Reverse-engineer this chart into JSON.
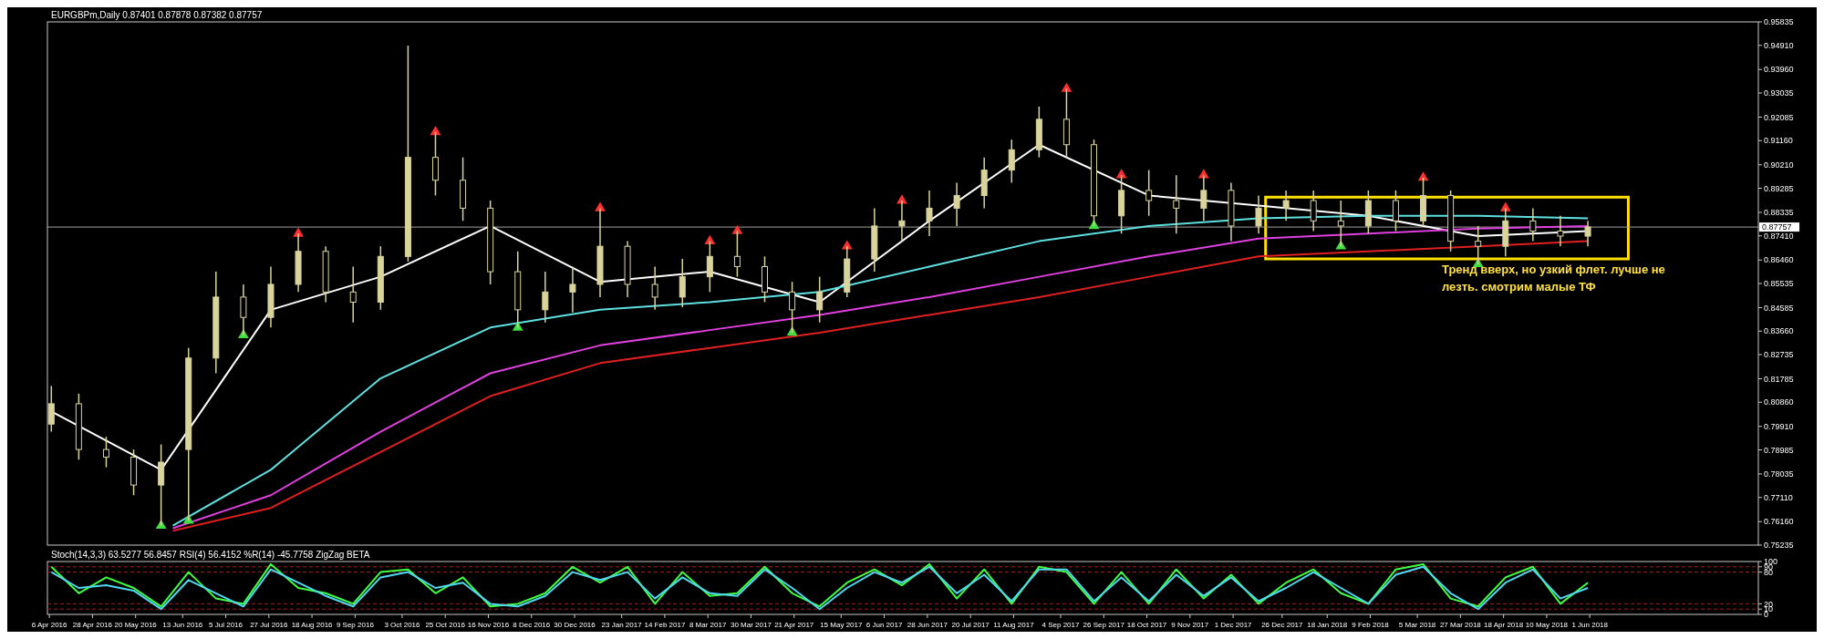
{
  "chart_data": [
    {
      "type": "candlestick",
      "title": "EURGBPm,Daily 0.87401 0.87878 0.87382 0.87757",
      "color": "#d9d49c",
      "x": [
        "2016-04-07",
        "2016-04-21",
        "2016-05-05",
        "2016-05-19",
        "2016-06-02",
        "2016-06-16",
        "2016-06-30",
        "2016-07-14",
        "2016-07-28",
        "2016-08-11",
        "2016-08-25",
        "2016-09-08",
        "2016-09-22",
        "2016-10-06",
        "2016-10-20",
        "2016-11-03",
        "2016-11-17",
        "2016-12-01",
        "2016-12-15",
        "2016-12-29",
        "2017-01-12",
        "2017-01-26",
        "2017-02-09",
        "2017-02-23",
        "2017-03-09",
        "2017-03-23",
        "2017-04-06",
        "2017-04-20",
        "2017-05-04",
        "2017-05-18",
        "2017-06-01",
        "2017-06-15",
        "2017-06-29",
        "2017-07-13",
        "2017-07-27",
        "2017-08-10",
        "2017-08-24",
        "2017-09-07",
        "2017-09-21",
        "2017-10-05",
        "2017-10-19",
        "2017-11-02",
        "2017-11-16",
        "2017-11-30",
        "2017-12-14",
        "2017-12-28",
        "2018-01-11",
        "2018-01-25",
        "2018-02-08",
        "2018-02-22",
        "2018-03-08",
        "2018-03-22",
        "2018-04-05",
        "2018-04-19",
        "2018-05-03",
        "2018-05-17",
        "2018-05-31"
      ],
      "ohlc": [
        [
          0.8,
          0.815,
          0.797,
          0.808
        ],
        [
          0.808,
          0.812,
          0.786,
          0.79
        ],
        [
          0.79,
          0.795,
          0.783,
          0.787
        ],
        [
          0.787,
          0.79,
          0.772,
          0.776
        ],
        [
          0.776,
          0.792,
          0.76,
          0.785
        ],
        [
          0.79,
          0.83,
          0.762,
          0.826
        ],
        [
          0.826,
          0.86,
          0.82,
          0.85
        ],
        [
          0.85,
          0.855,
          0.835,
          0.842
        ],
        [
          0.842,
          0.862,
          0.838,
          0.855
        ],
        [
          0.855,
          0.875,
          0.852,
          0.868
        ],
        [
          0.868,
          0.87,
          0.848,
          0.852
        ],
        [
          0.852,
          0.862,
          0.84,
          0.848
        ],
        [
          0.848,
          0.87,
          0.845,
          0.866
        ],
        [
          0.866,
          0.949,
          0.864,
          0.905
        ],
        [
          0.905,
          0.915,
          0.89,
          0.896
        ],
        [
          0.896,
          0.905,
          0.88,
          0.885
        ],
        [
          0.885,
          0.888,
          0.855,
          0.86
        ],
        [
          0.86,
          0.868,
          0.838,
          0.845
        ],
        [
          0.845,
          0.86,
          0.84,
          0.852
        ],
        [
          0.852,
          0.862,
          0.844,
          0.855
        ],
        [
          0.855,
          0.885,
          0.85,
          0.87
        ],
        [
          0.87,
          0.872,
          0.85,
          0.855
        ],
        [
          0.855,
          0.862,
          0.845,
          0.85
        ],
        [
          0.85,
          0.865,
          0.846,
          0.858
        ],
        [
          0.858,
          0.872,
          0.852,
          0.866
        ],
        [
          0.866,
          0.876,
          0.858,
          0.862
        ],
        [
          0.862,
          0.866,
          0.848,
          0.852
        ],
        [
          0.852,
          0.856,
          0.836,
          0.845
        ],
        [
          0.845,
          0.858,
          0.84,
          0.852
        ],
        [
          0.852,
          0.87,
          0.85,
          0.865
        ],
        [
          0.865,
          0.885,
          0.86,
          0.878
        ],
        [
          0.878,
          0.888,
          0.872,
          0.88
        ],
        [
          0.88,
          0.892,
          0.874,
          0.885
        ],
        [
          0.885,
          0.895,
          0.878,
          0.89
        ],
        [
          0.89,
          0.905,
          0.885,
          0.9
        ],
        [
          0.9,
          0.912,
          0.895,
          0.908
        ],
        [
          0.908,
          0.925,
          0.905,
          0.92
        ],
        [
          0.92,
          0.932,
          0.905,
          0.91
        ],
        [
          0.91,
          0.912,
          0.878,
          0.882
        ],
        [
          0.882,
          0.898,
          0.875,
          0.892
        ],
        [
          0.892,
          0.9,
          0.882,
          0.888
        ],
        [
          0.888,
          0.898,
          0.875,
          0.885
        ],
        [
          0.885,
          0.898,
          0.88,
          0.892
        ],
        [
          0.892,
          0.895,
          0.872,
          0.878
        ],
        [
          0.878,
          0.89,
          0.875,
          0.885
        ],
        [
          0.885,
          0.892,
          0.88,
          0.888
        ],
        [
          0.888,
          0.892,
          0.876,
          0.88
        ],
        [
          0.88,
          0.888,
          0.87,
          0.878
        ],
        [
          0.878,
          0.892,
          0.875,
          0.888
        ],
        [
          0.888,
          0.892,
          0.876,
          0.88
        ],
        [
          0.88,
          0.897,
          0.878,
          0.89
        ],
        [
          0.89,
          0.892,
          0.868,
          0.872
        ],
        [
          0.872,
          0.878,
          0.863,
          0.87
        ],
        [
          0.87,
          0.885,
          0.866,
          0.88
        ],
        [
          0.88,
          0.885,
          0.872,
          0.876
        ],
        [
          0.876,
          0.882,
          0.87,
          0.874
        ],
        [
          0.874,
          0.88,
          0.87,
          0.8776
        ]
      ],
      "series": [
        {
          "type": "line",
          "color": "#ffffff",
          "x": [
            "2016-04-07",
            "2016-06-02",
            "2016-07-28",
            "2016-09-22",
            "2016-11-17",
            "2017-01-12",
            "2017-03-09",
            "2017-05-04",
            "2017-06-29",
            "2017-08-24",
            "2017-10-19",
            "2017-12-14",
            "2018-02-08",
            "2018-04-05",
            "2018-05-31"
          ],
          "values": [
            0.805,
            0.782,
            0.845,
            0.858,
            0.878,
            0.856,
            0.86,
            0.848,
            0.88,
            0.91,
            0.89,
            0.886,
            0.882,
            0.874,
            0.876
          ]
        },
        {
          "type": "line",
          "color": "#5fe0e0",
          "x": [
            "2016-06-08",
            "2016-07-28",
            "2016-09-22",
            "2016-11-17",
            "2017-01-12",
            "2017-03-09",
            "2017-05-04",
            "2017-06-29",
            "2017-08-24",
            "2017-10-19",
            "2017-12-14",
            "2018-02-08",
            "2018-04-05",
            "2018-05-31"
          ],
          "values": [
            0.76,
            0.782,
            0.818,
            0.838,
            0.845,
            0.848,
            0.852,
            0.862,
            0.872,
            0.878,
            0.881,
            0.882,
            0.882,
            0.881
          ]
        },
        {
          "type": "line",
          "color": "#e040e0",
          "x": [
            "2016-06-08",
            "2016-07-28",
            "2016-09-22",
            "2016-11-17",
            "2017-01-12",
            "2017-03-09",
            "2017-05-04",
            "2017-06-29",
            "2017-08-24",
            "2017-10-19",
            "2017-12-14",
            "2018-02-08",
            "2018-04-05",
            "2018-05-31"
          ],
          "values": [
            0.759,
            0.772,
            0.797,
            0.82,
            0.831,
            0.837,
            0.843,
            0.85,
            0.858,
            0.866,
            0.873,
            0.875,
            0.877,
            0.878
          ]
        },
        {
          "type": "line",
          "color": "#e02020",
          "x": [
            "2016-06-08",
            "2016-07-28",
            "2016-09-22",
            "2016-11-17",
            "2017-01-12",
            "2017-03-09",
            "2017-05-04",
            "2017-06-29",
            "2017-08-24",
            "2017-10-19",
            "2017-12-14",
            "2018-02-08",
            "2018-04-05",
            "2018-05-31"
          ],
          "values": [
            0.758,
            0.767,
            0.789,
            0.811,
            0.824,
            0.83,
            0.836,
            0.843,
            0.85,
            0.858,
            0.866,
            0.868,
            0.87,
            0.872
          ]
        },
        {
          "type": "scatter",
          "marker": "triangle",
          "color": "#ff3030",
          "x": [
            "2016-08-11",
            "2016-10-20",
            "2017-01-12",
            "2017-03-09",
            "2017-03-23",
            "2017-05-18",
            "2017-06-15",
            "2017-09-07",
            "2017-10-05",
            "2017-11-16",
            "2018-03-08",
            "2018-04-19"
          ],
          "values": [
            0.875,
            0.915,
            0.885,
            0.872,
            0.876,
            0.87,
            0.888,
            0.932,
            0.898,
            0.898,
            0.897,
            0.885
          ]
        },
        {
          "type": "scatter",
          "marker": "triangle",
          "color": "#40e040",
          "x": [
            "2016-06-02",
            "2016-06-16",
            "2016-07-14",
            "2016-12-01",
            "2017-04-20",
            "2017-09-21",
            "2018-01-25",
            "2018-04-05"
          ],
          "values": [
            0.76,
            0.762,
            0.835,
            0.838,
            0.836,
            0.878,
            0.87,
            0.863
          ]
        }
      ],
      "xlim": [
        "2016-04-05",
        "2018-08-26"
      ],
      "ylim": [
        0.75235,
        0.95835
      ],
      "yticks": [
        {
          "value": 0.95835,
          "label": "0.95835"
        },
        {
          "value": 0.9491,
          "label": "0.94910"
        },
        {
          "value": 0.9396,
          "label": "0.93960"
        },
        {
          "value": 0.93035,
          "label": "0.93035"
        },
        {
          "value": 0.92085,
          "label": "0.92085"
        },
        {
          "value": 0.9116,
          "label": "0.91160"
        },
        {
          "value": 0.9021,
          "label": "0.90210"
        },
        {
          "value": 0.89285,
          "label": "0.89285"
        },
        {
          "value": 0.88335,
          "label": "0.88335"
        },
        {
          "value": 0.8741,
          "label": "0.87410"
        },
        {
          "value": 0.8646,
          "label": "0.86460"
        },
        {
          "value": 0.85535,
          "label": "0.85535"
        },
        {
          "value": 0.84585,
          "label": "0.84585"
        },
        {
          "value": 0.8366,
          "label": "0.83660"
        },
        {
          "value": 0.82735,
          "label": "0.82735"
        },
        {
          "value": 0.81785,
          "label": "0.81785"
        },
        {
          "value": 0.8086,
          "label": "0.80860"
        },
        {
          "value": 0.7991,
          "label": "0.79910"
        },
        {
          "value": 0.78985,
          "label": "0.78985"
        },
        {
          "value": 0.78035,
          "label": "0.78035"
        },
        {
          "value": 0.7711,
          "label": "0.77110"
        },
        {
          "value": 0.7616,
          "label": "0.76160"
        },
        {
          "value": 0.75235,
          "label": "0.75235"
        }
      ],
      "ref_lines": [
        {
          "axis": "y",
          "value": 0.87757,
          "label": "0.87757",
          "color": "#a0a0a0"
        }
      ],
      "annotations": [
        "Тренд вверх, но узкий флет. лучше не лезть. смотрим малые ТФ"
      ],
      "tick_labels": "y"
    },
    {
      "type": "line",
      "title": "Stoch(14,3,3) 63.5277 56.8457  RSI(4) 56.4152  %R(14) -45.7758  ZigZag BETA",
      "x": [
        "2016-04-07",
        "2016-04-21",
        "2016-05-05",
        "2016-05-19",
        "2016-06-02",
        "2016-06-16",
        "2016-06-30",
        "2016-07-14",
        "2016-07-28",
        "2016-08-11",
        "2016-08-25",
        "2016-09-08",
        "2016-09-22",
        "2016-10-06",
        "2016-10-20",
        "2016-11-03",
        "2016-11-17",
        "2016-12-01",
        "2016-12-15",
        "2016-12-29",
        "2017-01-12",
        "2017-01-26",
        "2017-02-09",
        "2017-02-23",
        "2017-03-09",
        "2017-03-23",
        "2017-04-06",
        "2017-04-20",
        "2017-05-04",
        "2017-05-18",
        "2017-06-01",
        "2017-06-15",
        "2017-06-29",
        "2017-07-13",
        "2017-07-27",
        "2017-08-10",
        "2017-08-24",
        "2017-09-07",
        "2017-09-21",
        "2017-10-05",
        "2017-10-19",
        "2017-11-02",
        "2017-11-16",
        "2017-11-30",
        "2017-12-14",
        "2017-12-28",
        "2018-01-11",
        "2018-01-25",
        "2018-02-08",
        "2018-02-22",
        "2018-03-08",
        "2018-03-22",
        "2018-04-05",
        "2018-04-19",
        "2018-05-03",
        "2018-05-17",
        "2018-05-31"
      ],
      "series": [
        {
          "color": "#40ff40",
          "values": [
            90,
            40,
            70,
            50,
            15,
            80,
            30,
            20,
            95,
            50,
            40,
            20,
            80,
            85,
            40,
            70,
            15,
            20,
            40,
            90,
            60,
            90,
            20,
            80,
            35,
            40,
            90,
            40,
            15,
            60,
            85,
            55,
            95,
            30,
            85,
            20,
            90,
            80,
            20,
            80,
            20,
            85,
            30,
            75,
            20,
            60,
            85,
            40,
            20,
            85,
            95,
            30,
            15,
            70,
            90,
            20,
            60
          ]
        },
        {
          "color": "#50d8f0",
          "values": [
            80,
            50,
            55,
            45,
            10,
            65,
            40,
            15,
            85,
            60,
            35,
            15,
            70,
            80,
            50,
            60,
            20,
            15,
            35,
            80,
            65,
            80,
            30,
            70,
            40,
            35,
            85,
            50,
            10,
            50,
            80,
            60,
            90,
            40,
            75,
            25,
            85,
            85,
            25,
            70,
            25,
            75,
            35,
            70,
            25,
            50,
            80,
            50,
            20,
            75,
            90,
            40,
            10,
            60,
            85,
            30,
            50
          ]
        }
      ],
      "xlim": [
        "2016-04-05",
        "2018-08-26"
      ],
      "ylim": [
        0,
        100
      ],
      "yticks": [
        0,
        10,
        20,
        80,
        90,
        100
      ],
      "xticks": [
        {
          "value": "2016-04-06",
          "label": "6 Apr 2016"
        },
        {
          "value": "2016-04-28",
          "label": "28 Apr 2016"
        },
        {
          "value": "2016-05-20",
          "label": "20 May 2016"
        },
        {
          "value": "2016-06-13",
          "label": "13 Jun 2016"
        },
        {
          "value": "2016-07-05",
          "label": "5 Jul 2016"
        },
        {
          "value": "2016-07-27",
          "label": "27 Jul 2016"
        },
        {
          "value": "2016-08-18",
          "label": "18 Aug 2016"
        },
        {
          "value": "2016-09-09",
          "label": "9 Sep 2016"
        },
        {
          "value": "2016-10-03",
          "label": "3 Oct 2016"
        },
        {
          "value": "2016-10-25",
          "label": "25 Oct 2016"
        },
        {
          "value": "2016-11-16",
          "label": "16 Nov 2016"
        },
        {
          "value": "2016-12-08",
          "label": "8 Dec 2016"
        },
        {
          "value": "2016-12-30",
          "label": "30 Dec 2016"
        },
        {
          "value": "2017-01-23",
          "label": "23 Jan 2017"
        },
        {
          "value": "2017-02-14",
          "label": "14 Feb 2017"
        },
        {
          "value": "2017-03-08",
          "label": "8 Mar 2017"
        },
        {
          "value": "2017-03-30",
          "label": "30 Mar 2017"
        },
        {
          "value": "2017-04-21",
          "label": "21 Apr 2017"
        },
        {
          "value": "2017-05-15",
          "label": "15 May 2017"
        },
        {
          "value": "2017-06-06",
          "label": "6 Jun 2017"
        },
        {
          "value": "2017-06-28",
          "label": "28 Jun 2017"
        },
        {
          "value": "2017-07-20",
          "label": "20 Jul 2017"
        },
        {
          "value": "2017-08-11",
          "label": "11 Aug 2017"
        },
        {
          "value": "2017-09-04",
          "label": "4 Sep 2017"
        },
        {
          "value": "2017-09-26",
          "label": "26 Sep 2017"
        },
        {
          "value": "2017-10-18",
          "label": "18 Oct 2017"
        },
        {
          "value": "2017-11-09",
          "label": "9 Nov 2017"
        },
        {
          "value": "2017-12-01",
          "label": "1 Dec 2017"
        },
        {
          "value": "2017-12-26",
          "label": "26 Dec 2017"
        },
        {
          "value": "2018-01-18",
          "label": "18 Jan 2018"
        },
        {
          "value": "2018-02-09",
          "label": "9 Feb 2018"
        },
        {
          "value": "2018-03-05",
          "label": "5 Mar 2018"
        },
        {
          "value": "2018-03-27",
          "label": "27 Mar 2018"
        },
        {
          "value": "2018-04-18",
          "label": "18 Apr 2018"
        },
        {
          "value": "2018-05-10",
          "label": "10 May 2018"
        },
        {
          "value": "2018-06-01",
          "label": "1 Jun 2018"
        }
      ],
      "ref_lines": [
        {
          "axis": "y",
          "value": 90,
          "color": "#a02020",
          "line_style": "dashed"
        },
        {
          "axis": "y",
          "value": 80,
          "color": "#a02020",
          "line_style": "dashed"
        },
        {
          "axis": "y",
          "value": 20,
          "color": "#a02020",
          "line_style": "dashed"
        },
        {
          "axis": "y",
          "value": 10,
          "color": "#a02020",
          "line_style": "dashed"
        }
      ]
    }
  ]
}
